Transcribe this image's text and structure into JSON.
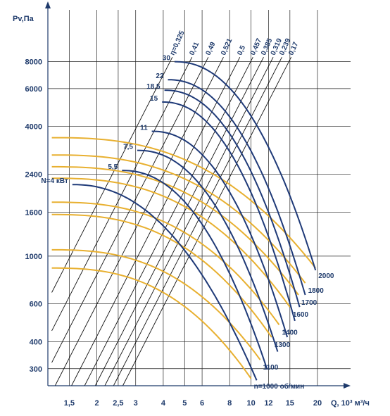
{
  "chart_data": {
    "type": "line",
    "title": "",
    "xlabel": "Q, 10³ м³/ч",
    "ylabel": "Pv,Па",
    "x_scale": "log",
    "y_scale": "log",
    "xlim": [
      1.2,
      23
    ],
    "ylim": [
      250,
      10000
    ],
    "grid": true,
    "x_ticks": [
      1.5,
      2,
      2.5,
      3,
      4,
      5,
      6,
      8,
      10,
      12,
      15,
      20
    ],
    "x_tick_labels": [
      "1,5",
      "2",
      "2,5",
      "3",
      "4",
      "5",
      "6",
      "8",
      "10",
      "12",
      "15",
      "20"
    ],
    "y_ticks": [
      300,
      400,
      600,
      1000,
      1600,
      2400,
      4000,
      6000,
      8000
    ],
    "y_tick_labels": [
      "300",
      "400",
      "600",
      "1000",
      "1600",
      "2400",
      "4000",
      "6000",
      "8000"
    ],
    "efficiency_lines": [
      {
        "label": "η=0,325",
        "q": 4.4
      },
      {
        "label": "0,41",
        "q": 5.4
      },
      {
        "label": "0,49",
        "q": 6.4
      },
      {
        "label": "0,521",
        "q": 7.5
      },
      {
        "label": "0,5",
        "q": 8.9
      },
      {
        "label": "0,457",
        "q": 10.2
      },
      {
        "label": "0,385",
        "q": 11.4
      },
      {
        "label": "0,319",
        "q": 12.6
      },
      {
        "label": "0,239",
        "q": 13.8
      },
      {
        "label": "0,17",
        "q": 15.2
      }
    ],
    "power_curves": [
      {
        "label": "N=4 кВт",
        "q_start": 1.55,
        "p_start": 2150,
        "q_end": 10.6,
        "p_end": 265
      },
      {
        "label": "5,5",
        "q_start": 2.6,
        "p_start": 2500,
        "q_end": 11.8,
        "p_end": 300
      },
      {
        "label": "7,5",
        "q_start": 3.05,
        "p_start": 3100,
        "q_end": 13.2,
        "p_end": 360
      },
      {
        "label": "11",
        "q_start": 3.55,
        "p_start": 3800,
        "q_end": 14.6,
        "p_end": 420
      },
      {
        "label": "15",
        "q_start": 3.95,
        "p_start": 5200,
        "q_end": 15.8,
        "p_end": 500
      },
      {
        "label": "18,5",
        "q_start": 4.05,
        "p_start": 5900,
        "q_end": 16.6,
        "p_end": 580
      },
      {
        "label": "22",
        "q_start": 4.2,
        "p_start": 6600,
        "q_end": 17.6,
        "p_end": 660
      },
      {
        "label": "30",
        "q_start": 4.5,
        "p_start": 8000,
        "q_end": 19.6,
        "p_end": 860
      }
    ],
    "speed_curves": [
      {
        "label": "n=1000 об/мин",
        "p0": 880,
        "q_end": 10.0,
        "p_end": 270
      },
      {
        "label": "1100",
        "p0": 1070,
        "q_end": 11.0,
        "p_end": 330
      },
      {
        "label": "1300",
        "p0": 1560,
        "q_end": 12.4,
        "p_end": 420
      },
      {
        "label": "1400",
        "p0": 1780,
        "q_end": 13.4,
        "p_end": 480
      },
      {
        "label": "1600",
        "p0": 2300,
        "q_end": 15.0,
        "p_end": 580
      },
      {
        "label": "1700",
        "p0": 2600,
        "q_end": 16.4,
        "p_end": 660
      },
      {
        "label": "1800",
        "p0": 2950,
        "q_end": 17.6,
        "p_end": 750
      },
      {
        "label": "2000",
        "p0": 3550,
        "q_end": 19.6,
        "p_end": 880
      }
    ],
    "colors": {
      "axis": "#1e3a6b",
      "power": "#1f3a78",
      "speed": "#e8b030",
      "efficiency": "#111111",
      "grid": "#222222"
    }
  }
}
